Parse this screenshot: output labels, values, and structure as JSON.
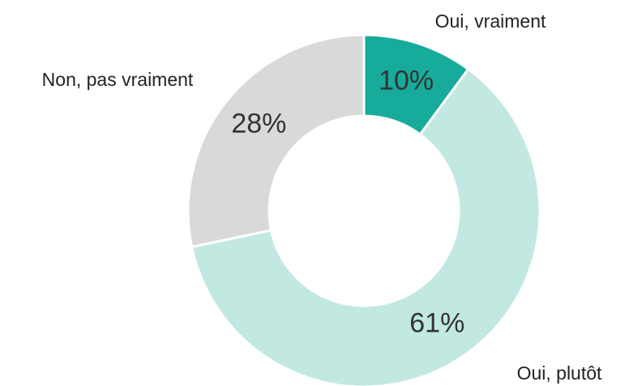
{
  "chart_data": {
    "type": "donut",
    "categories": [
      "Oui, vraiment",
      "Oui, plutôt",
      "Non, pas vraiment"
    ],
    "values": [
      10,
      61,
      28
    ],
    "value_labels": [
      "10%",
      "61%",
      "28%"
    ],
    "colors": [
      "#17ab9c",
      "#c2e8e2",
      "#d9d9d9"
    ]
  }
}
